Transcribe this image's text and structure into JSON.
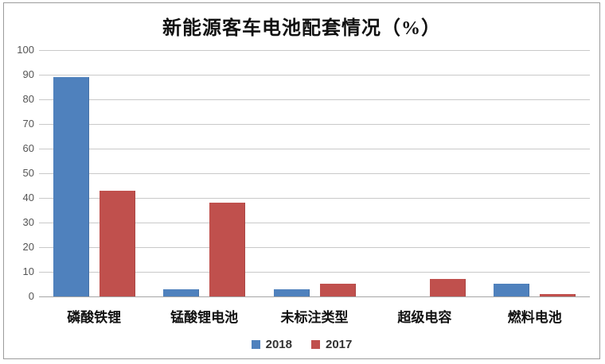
{
  "window": {
    "background": "#ffffff",
    "border_color": "#9c9c9c"
  },
  "chart_data": {
    "type": "bar",
    "title": "新能源客车电池配套情况（%）",
    "categories": [
      "磷酸铁锂",
      "锰酸锂电池",
      "未标注类型",
      "超级电容",
      "燃料电池"
    ],
    "series": [
      {
        "name": "2018",
        "color": "#4F81BD",
        "values": [
          89,
          3,
          3,
          0,
          5
        ]
      },
      {
        "name": "2017",
        "color": "#C0504D",
        "values": [
          43,
          38,
          5,
          7,
          1
        ]
      }
    ],
    "xlabel": "",
    "ylabel": "",
    "ylim": [
      0,
      100
    ],
    "yticks": [
      0,
      10,
      20,
      30,
      40,
      50,
      60,
      70,
      80,
      90,
      100
    ],
    "grid": true,
    "grid_color": "#c9c9c9",
    "axis_color": "#a6a6a6",
    "tick_label_color": "#555555",
    "legend_position": "bottom"
  }
}
